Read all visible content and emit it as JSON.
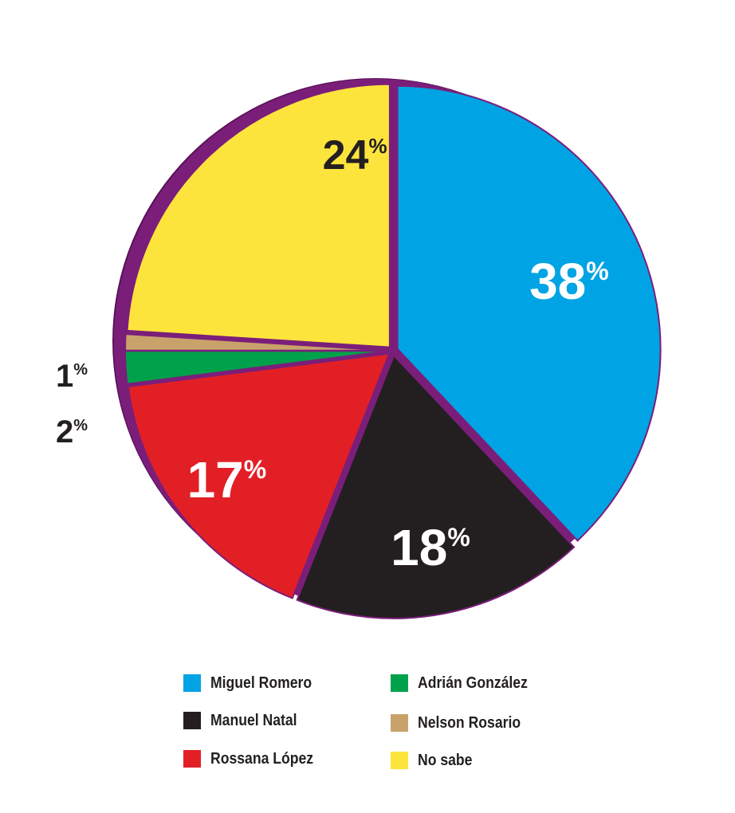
{
  "chart_data": {
    "type": "pie",
    "title": "",
    "legend_position": "bottom",
    "slices": [
      {
        "label": "Miguel Romero",
        "value": 38,
        "display": "38",
        "color": "#00a3e4"
      },
      {
        "label": "Manuel Natal",
        "value": 18,
        "display": "18",
        "color": "#231f20"
      },
      {
        "label": "Rossana López",
        "value": 17,
        "display": "17",
        "color": "#e31f26"
      },
      {
        "label": "Adrián González",
        "value": 2,
        "display": "2",
        "color": "#00a14b"
      },
      {
        "label": "Nelson Rosario",
        "value": 1,
        "display": "1",
        "color": "#c9a26b"
      },
      {
        "label": "No sabe",
        "value": 24,
        "display": "24",
        "color": "#fde43c"
      }
    ],
    "percent_sign": "%",
    "side_color": "#7b1e7a",
    "side_dark_color": "#5a1158"
  }
}
